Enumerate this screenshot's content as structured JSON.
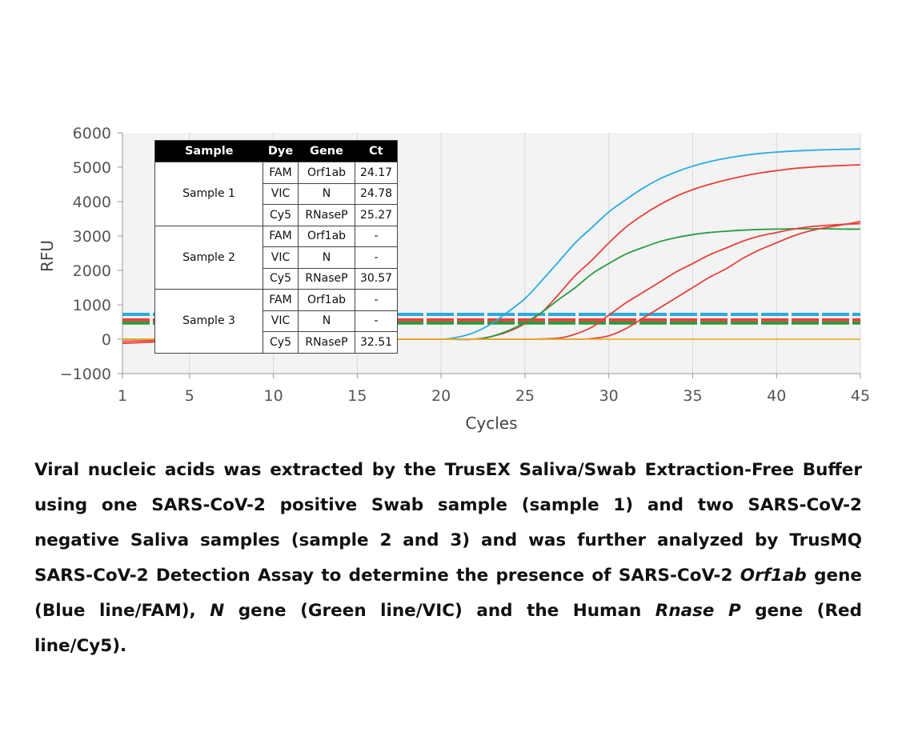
{
  "chart_data": {
    "type": "line",
    "xlabel": "Cycles",
    "ylabel": "RFU",
    "xlim": [
      1,
      45
    ],
    "ylim": [
      -1000,
      6000
    ],
    "x_ticks": [
      1,
      5,
      10,
      15,
      20,
      25,
      30,
      35,
      40,
      45
    ],
    "y_ticks": [
      -1000,
      0,
      1000,
      2000,
      3000,
      4000,
      5000,
      6000
    ],
    "grid": "vertical",
    "series": [
      {
        "color": "#29abe2",
        "x": [
          1,
          5,
          10,
          15,
          18,
          20,
          21,
          22,
          23,
          24,
          25,
          26,
          27,
          28,
          29,
          30,
          31,
          32,
          33,
          34,
          35,
          36,
          37,
          38,
          39,
          40,
          41,
          42,
          43,
          44,
          45
        ],
        "values": [
          0,
          0,
          0,
          0,
          0,
          0,
          60,
          200,
          450,
          800,
          1180,
          1700,
          2250,
          2800,
          3250,
          3700,
          4050,
          4380,
          4650,
          4860,
          5030,
          5160,
          5260,
          5340,
          5400,
          5440,
          5470,
          5490,
          5510,
          5520,
          5530
        ]
      },
      {
        "color": "#e8403a",
        "x": [
          1,
          5,
          10,
          15,
          20,
          22,
          23,
          24,
          25,
          26,
          27,
          28,
          29,
          30,
          31,
          32,
          33,
          34,
          35,
          36,
          37,
          38,
          39,
          40,
          41,
          42,
          43,
          44,
          45
        ],
        "values": [
          0,
          0,
          0,
          0,
          0,
          0,
          80,
          220,
          450,
          780,
          1300,
          1850,
          2300,
          2800,
          3250,
          3600,
          3900,
          4150,
          4350,
          4500,
          4630,
          4740,
          4830,
          4900,
          4960,
          5000,
          5030,
          5050,
          5070
        ]
      },
      {
        "color": "#2a9c3f",
        "x": [
          1,
          5,
          10,
          15,
          20,
          22,
          23,
          24,
          25,
          26,
          27,
          28,
          29,
          30,
          31,
          32,
          33,
          34,
          35,
          36,
          37,
          38,
          39,
          40,
          41,
          42,
          43,
          44,
          45
        ],
        "values": [
          0,
          0,
          0,
          0,
          0,
          0,
          80,
          250,
          480,
          780,
          1150,
          1500,
          1900,
          2200,
          2470,
          2660,
          2830,
          2950,
          3040,
          3100,
          3140,
          3170,
          3190,
          3200,
          3210,
          3210,
          3210,
          3200,
          3200
        ]
      },
      {
        "color": "#e8403a",
        "x": [
          1,
          3,
          5,
          10,
          15,
          20,
          25,
          27,
          28,
          29,
          30,
          31,
          32,
          33,
          34,
          35,
          36,
          37,
          38,
          39,
          40,
          41,
          42,
          43,
          44,
          45
        ],
        "values": [
          -120,
          -80,
          -30,
          0,
          0,
          0,
          0,
          30,
          150,
          350,
          700,
          1050,
          1350,
          1650,
          1950,
          2200,
          2450,
          2650,
          2850,
          3000,
          3100,
          3200,
          3270,
          3310,
          3340,
          3360
        ]
      },
      {
        "color": "#e8403a",
        "x": [
          1,
          5,
          10,
          15,
          20,
          25,
          28,
          29,
          30,
          31,
          32,
          33,
          34,
          35,
          36,
          37,
          38,
          39,
          40,
          41,
          42,
          43,
          44,
          45
        ],
        "values": [
          -60,
          -20,
          0,
          0,
          0,
          0,
          0,
          20,
          100,
          300,
          600,
          900,
          1200,
          1500,
          1800,
          2050,
          2350,
          2600,
          2800,
          3000,
          3150,
          3250,
          3330,
          3420
        ]
      },
      {
        "color": "#e6b32a",
        "x": [
          1,
          45
        ],
        "values": [
          0,
          0
        ]
      }
    ],
    "thresholds": [
      {
        "color": "#29abe2",
        "value": 720
      },
      {
        "color": "#e8403a",
        "value": 560
      },
      {
        "color": "#2a9c3f",
        "value": 470
      }
    ]
  },
  "table": {
    "headers": [
      "Sample",
      "Dye",
      "Gene",
      "Ct"
    ],
    "groups": [
      {
        "sample": "Sample 1",
        "rows": [
          {
            "dye": "FAM",
            "gene": "Orf1ab",
            "ct": "24.17"
          },
          {
            "dye": "VIC",
            "gene": "N",
            "ct": "24.78"
          },
          {
            "dye": "Cy5",
            "gene": "RNaseP",
            "ct": "25.27"
          }
        ]
      },
      {
        "sample": "Sample 2",
        "rows": [
          {
            "dye": "FAM",
            "gene": "Orf1ab",
            "ct": "-"
          },
          {
            "dye": "VIC",
            "gene": "N",
            "ct": "-"
          },
          {
            "dye": "Cy5",
            "gene": "RNaseP",
            "ct": "30.57"
          }
        ]
      },
      {
        "sample": "Sample 3",
        "rows": [
          {
            "dye": "FAM",
            "gene": "Orf1ab",
            "ct": "-"
          },
          {
            "dye": "VIC",
            "gene": "N",
            "ct": "-"
          },
          {
            "dye": "Cy5",
            "gene": "RNaseP",
            "ct": "32.51"
          }
        ]
      }
    ]
  },
  "caption": {
    "p1": "Viral nucleic acids was extracted by the TrusEX Saliva/Swab Extraction-Free Buffer using one SARS-CoV-2 positive Swab sample (sample 1) and two SARS-CoV-2 negative Saliva samples (sample 2 and 3) and was further analyzed by TrusMQ SARS-CoV-2 Detection Assay to determine the presence of SARS-CoV-2 ",
    "orf": "Orf1ab",
    "p2": " gene (Blue line/FAM), ",
    "n": "N",
    "p3": " gene (Green line/VIC) and the Human ",
    "rnase": "Rnase P",
    "p4": " gene (Red line/Cy5)."
  }
}
